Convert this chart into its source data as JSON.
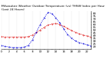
{
  "title": "Milwaukee Weather Outdoor Temperature (vs) THSW Index per Hour (Last 24 Hours)",
  "hours": [
    0,
    1,
    2,
    3,
    4,
    5,
    6,
    7,
    8,
    9,
    10,
    11,
    12,
    13,
    14,
    15,
    16,
    17,
    18,
    19,
    20,
    21,
    22,
    23
  ],
  "temp": [
    38,
    37,
    37,
    37,
    37,
    37,
    37,
    38,
    41,
    45,
    50,
    55,
    59,
    61,
    62,
    60,
    57,
    53,
    49,
    46,
    43,
    41,
    39,
    37
  ],
  "thsw": [
    22,
    20,
    19,
    18,
    18,
    18,
    19,
    22,
    32,
    46,
    60,
    72,
    82,
    80,
    72,
    63,
    52,
    42,
    35,
    30,
    27,
    25,
    23,
    21
  ],
  "temp_color": "#dd0000",
  "thsw_color": "#0000dd",
  "bg_color": "#ffffff",
  "plot_bg": "#ffffff",
  "grid_color": "#999999",
  "ylim_min": 15,
  "ylim_max": 85,
  "ytick_values": [
    20,
    25,
    30,
    35,
    40,
    45,
    50,
    55,
    60,
    65,
    70,
    75,
    80
  ],
  "ytick_labels": [
    "20",
    "25",
    "30",
    "35",
    "40",
    "45",
    "50",
    "55",
    "60",
    "65",
    "70",
    "75",
    "80"
  ],
  "ylabel_fontsize": 3.0,
  "title_fontsize": 3.2,
  "tick_fontsize": 2.8,
  "line_width": 0.55,
  "marker_size": 0.8
}
